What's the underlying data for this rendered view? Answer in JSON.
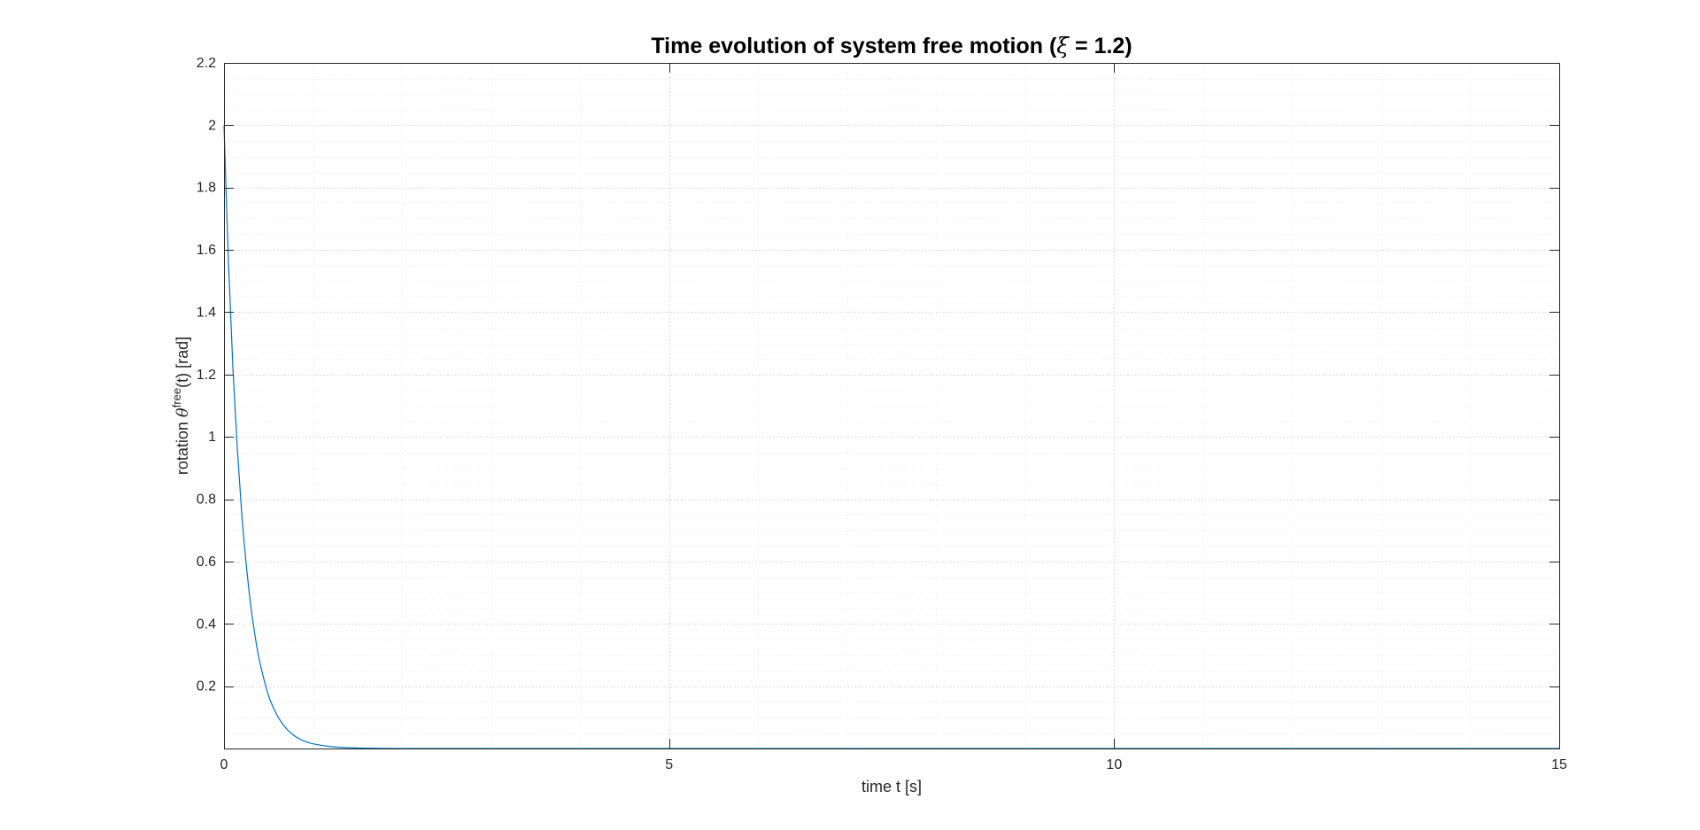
{
  "chart_data": {
    "type": "line",
    "title": {
      "prefix": "Time evolution of system free motion (",
      "symbol": "ξ",
      "suffix": " = 1.2)"
    },
    "xlabel": "time t [s]",
    "ylabel": {
      "prefix": "rotation ",
      "symbol": "θ",
      "superscript": "free",
      "suffix": "(t)   [rad]"
    },
    "xlim": [
      0,
      15
    ],
    "ylim": [
      0,
      2.2
    ],
    "xticks": [
      0,
      5,
      10,
      15
    ],
    "xtick_labels": [
      "0",
      "5",
      "10",
      "15"
    ],
    "yticks": [
      0.2,
      0.4,
      0.6,
      0.8,
      1,
      1.2,
      1.4,
      1.6,
      1.8,
      2,
      2.2
    ],
    "ytick_labels": [
      "0.2",
      "0.4",
      "0.6",
      "0.8",
      "1",
      "1.2",
      "1.4",
      "1.6",
      "1.8",
      "2",
      "2.2"
    ],
    "x_minor_step": 1,
    "y_minor_step": 0.05,
    "grid": true,
    "minor_grid": true,
    "series": [
      {
        "color": "#0072bd",
        "x": [
          0,
          0.05,
          0.1,
          0.15,
          0.2,
          0.25,
          0.3,
          0.35,
          0.4,
          0.5,
          0.6,
          0.7,
          0.8,
          0.9,
          1.0,
          1.2,
          1.4,
          1.6,
          1.8,
          2.0,
          3,
          5,
          10,
          15
        ],
        "y": [
          2.0,
          1.56,
          1.22,
          0.96,
          0.75,
          0.59,
          0.46,
          0.36,
          0.28,
          0.17,
          0.105,
          0.064,
          0.039,
          0.024,
          0.015,
          0.006,
          0.0025,
          0.001,
          0.0004,
          0.0002,
          0.0,
          0.0,
          0.0,
          0.0
        ]
      }
    ]
  },
  "colors": {
    "axes": "#262626",
    "major_grid": "#dcdcdc",
    "minor_grid": "#eeeeee",
    "line": "#0072bd"
  }
}
